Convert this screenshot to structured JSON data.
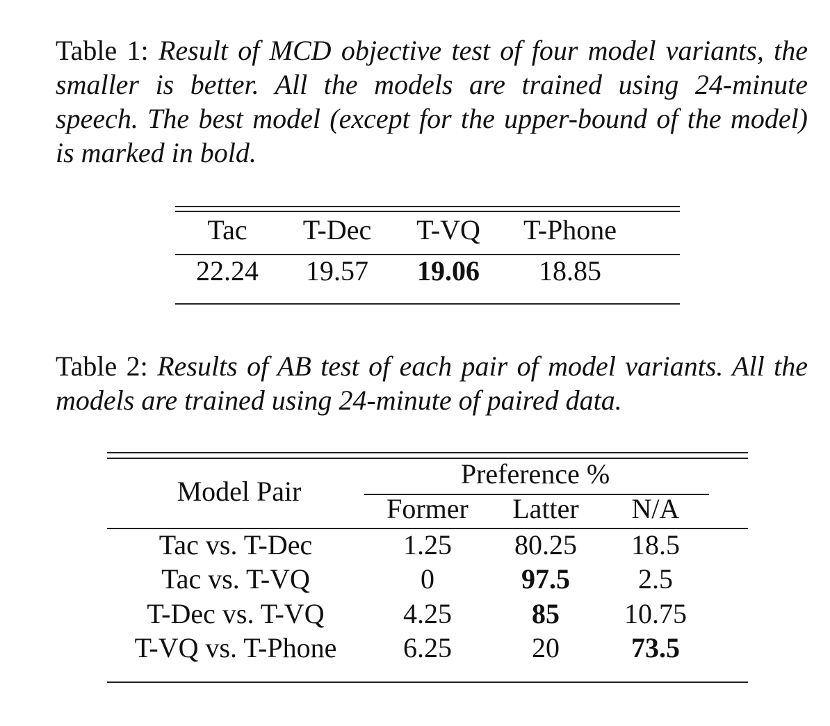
{
  "table1": {
    "caption_label": "Table 1:",
    "caption_text": "Result of MCD objective test of four model variants, the smaller is better. All the models are trained using 24-minute speech.  The best model (except for the upper-bound of the model) is marked in bold.",
    "headers": [
      "Tac",
      "T-Dec",
      "T-VQ",
      "T-Phone"
    ],
    "values": [
      "22.24",
      "19.57",
      "19.06",
      "18.85"
    ],
    "bold_value_index": 2
  },
  "table2": {
    "caption_label": "Table 2:",
    "caption_text": "Results of AB test of each pair of model variants.  All the models are trained using 24-minute of paired data.",
    "pair_header": "Model Pair",
    "group_header": "Preference %",
    "sub_headers": [
      "Former",
      "Latter",
      "N/A"
    ],
    "rows": [
      {
        "pair": "Tac vs. T-Dec",
        "former": "1.25",
        "latter": "80.25",
        "na": "18.5"
      },
      {
        "pair": "Tac vs. T-VQ",
        "former": "0",
        "latter": "97.5",
        "na": "2.5"
      },
      {
        "pair": "T-Dec vs. T-VQ",
        "former": "4.25",
        "latter": "85",
        "na": "10.75"
      },
      {
        "pair": "T-VQ vs. T-Phone",
        "former": "6.25",
        "latter": "20",
        "na": "73.5"
      }
    ]
  }
}
